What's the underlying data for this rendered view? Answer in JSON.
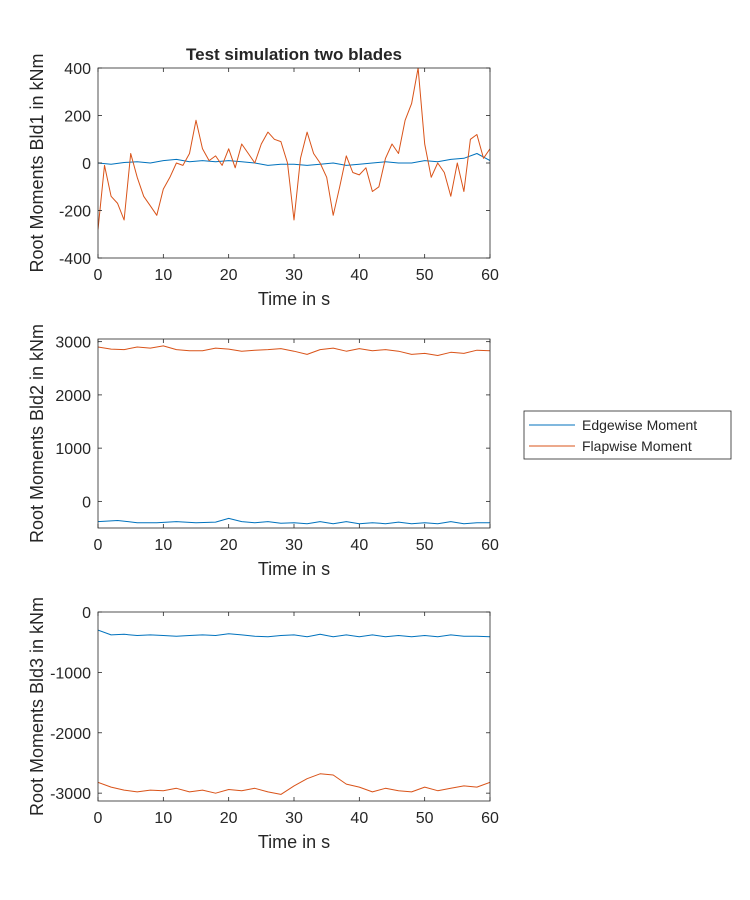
{
  "figure_title": "Test simulation two blades",
  "legend": {
    "items": [
      {
        "label": "Edgewise Moment",
        "color": "#0072BD"
      },
      {
        "label": "Flapwise Moment",
        "color": "#D95319"
      }
    ]
  },
  "chart_data": [
    {
      "type": "line",
      "title": "Test simulation two blades",
      "xlabel": "Time in s",
      "ylabel": "Root Moments Bld1 in kNm",
      "xlim": [
        0,
        60
      ],
      "ylim": [
        -400,
        400
      ],
      "xticks": [
        0,
        10,
        20,
        30,
        40,
        50,
        60
      ],
      "yticks": [
        -400,
        -200,
        0,
        200,
        400
      ],
      "series": [
        {
          "name": "Edgewise Moment",
          "color": "#0072BD",
          "x": [
            0,
            2,
            4,
            6,
            8,
            10,
            12,
            14,
            16,
            18,
            20,
            22,
            24,
            26,
            28,
            30,
            32,
            34,
            36,
            38,
            40,
            42,
            44,
            46,
            48,
            50,
            52,
            54,
            56,
            58,
            60
          ],
          "y": [
            0,
            -5,
            2,
            5,
            0,
            10,
            15,
            5,
            10,
            5,
            10,
            5,
            0,
            -10,
            -5,
            -5,
            -10,
            -5,
            0,
            -10,
            -5,
            0,
            5,
            0,
            0,
            10,
            5,
            15,
            20,
            40,
            10
          ]
        },
        {
          "name": "Flapwise Moment",
          "color": "#D95319",
          "x": [
            0,
            1,
            2,
            3,
            4,
            5,
            6,
            7,
            8,
            9,
            10,
            11,
            12,
            13,
            14,
            15,
            16,
            17,
            18,
            19,
            20,
            21,
            22,
            23,
            24,
            25,
            26,
            27,
            28,
            29,
            30,
            31,
            32,
            33,
            34,
            35,
            36,
            37,
            38,
            39,
            40,
            41,
            42,
            43,
            44,
            45,
            46,
            47,
            48,
            49,
            50,
            51,
            52,
            53,
            54,
            55,
            56,
            57,
            58,
            59,
            60
          ],
          "y": [
            -280,
            -10,
            -140,
            -170,
            -240,
            40,
            -60,
            -140,
            -180,
            -220,
            -110,
            -60,
            0,
            -10,
            40,
            180,
            60,
            10,
            30,
            -10,
            60,
            -20,
            80,
            40,
            0,
            80,
            130,
            100,
            90,
            0,
            -240,
            20,
            130,
            40,
            0,
            -60,
            -220,
            -100,
            30,
            -40,
            -50,
            -20,
            -120,
            -100,
            20,
            80,
            40,
            180,
            250,
            400,
            80,
            -60,
            0,
            -40,
            -140,
            0,
            -120,
            100,
            120,
            20,
            60
          ]
        }
      ]
    },
    {
      "type": "line",
      "title": "",
      "xlabel": "Time in s",
      "ylabel": "Root Moments Bld2 in kNm",
      "xlim": [
        0,
        60
      ],
      "ylim": [
        -500,
        3050
      ],
      "xticks": [
        0,
        10,
        20,
        30,
        40,
        50,
        60
      ],
      "yticks": [
        0,
        1000,
        2000,
        3000
      ],
      "series": [
        {
          "name": "Edgewise Moment",
          "color": "#0072BD",
          "x": [
            0,
            3,
            6,
            9,
            12,
            15,
            18,
            20,
            22,
            24,
            26,
            28,
            30,
            32,
            34,
            36,
            38,
            40,
            42,
            44,
            46,
            48,
            50,
            52,
            54,
            56,
            58,
            60
          ],
          "y": [
            -380,
            -360,
            -400,
            -400,
            -380,
            -400,
            -390,
            -320,
            -380,
            -400,
            -380,
            -410,
            -400,
            -420,
            -380,
            -420,
            -380,
            -420,
            -400,
            -420,
            -390,
            -420,
            -400,
            -420,
            -380,
            -420,
            -400,
            -400
          ]
        },
        {
          "name": "Flapwise Moment",
          "color": "#D95319",
          "x": [
            0,
            2,
            4,
            6,
            8,
            10,
            12,
            14,
            16,
            18,
            20,
            22,
            24,
            26,
            28,
            30,
            32,
            34,
            36,
            38,
            40,
            42,
            44,
            46,
            48,
            50,
            52,
            54,
            56,
            58,
            60
          ],
          "y": [
            2900,
            2860,
            2850,
            2900,
            2880,
            2920,
            2850,
            2830,
            2830,
            2880,
            2860,
            2820,
            2840,
            2850,
            2870,
            2820,
            2760,
            2850,
            2880,
            2820,
            2870,
            2830,
            2850,
            2820,
            2760,
            2780,
            2740,
            2800,
            2780,
            2840,
            2830
          ]
        }
      ]
    },
    {
      "type": "line",
      "title": "",
      "xlabel": "Time in s",
      "ylabel": "Root Moments Bld3 in kNm",
      "xlim": [
        0,
        60
      ],
      "ylim": [
        -3130,
        0
      ],
      "xticks": [
        0,
        10,
        20,
        30,
        40,
        50,
        60
      ],
      "yticks": [
        -3000,
        -2000,
        -1000,
        0
      ],
      "series": [
        {
          "name": "Edgewise Moment",
          "color": "#0072BD",
          "x": [
            0,
            2,
            4,
            6,
            8,
            10,
            12,
            14,
            16,
            18,
            20,
            22,
            24,
            26,
            28,
            30,
            32,
            34,
            36,
            38,
            40,
            42,
            44,
            46,
            48,
            50,
            52,
            54,
            56,
            58,
            60
          ],
          "y": [
            -300,
            -380,
            -370,
            -390,
            -380,
            -390,
            -400,
            -390,
            -380,
            -390,
            -360,
            -380,
            -400,
            -410,
            -390,
            -380,
            -410,
            -370,
            -410,
            -380,
            -410,
            -380,
            -410,
            -390,
            -410,
            -390,
            -410,
            -380,
            -400,
            -400,
            -410
          ]
        },
        {
          "name": "Flapwise Moment",
          "color": "#D95319",
          "x": [
            0,
            2,
            4,
            6,
            8,
            10,
            12,
            14,
            16,
            18,
            20,
            22,
            24,
            26,
            28,
            30,
            32,
            34,
            36,
            38,
            40,
            42,
            44,
            46,
            48,
            50,
            52,
            54,
            56,
            58,
            60
          ],
          "y": [
            -2820,
            -2900,
            -2950,
            -2980,
            -2950,
            -2960,
            -2920,
            -2980,
            -2950,
            -3000,
            -2940,
            -2960,
            -2920,
            -2980,
            -3020,
            -2880,
            -2760,
            -2680,
            -2700,
            -2850,
            -2900,
            -2980,
            -2920,
            -2960,
            -2980,
            -2900,
            -2960,
            -2920,
            -2880,
            -2900,
            -2820
          ]
        }
      ]
    }
  ]
}
